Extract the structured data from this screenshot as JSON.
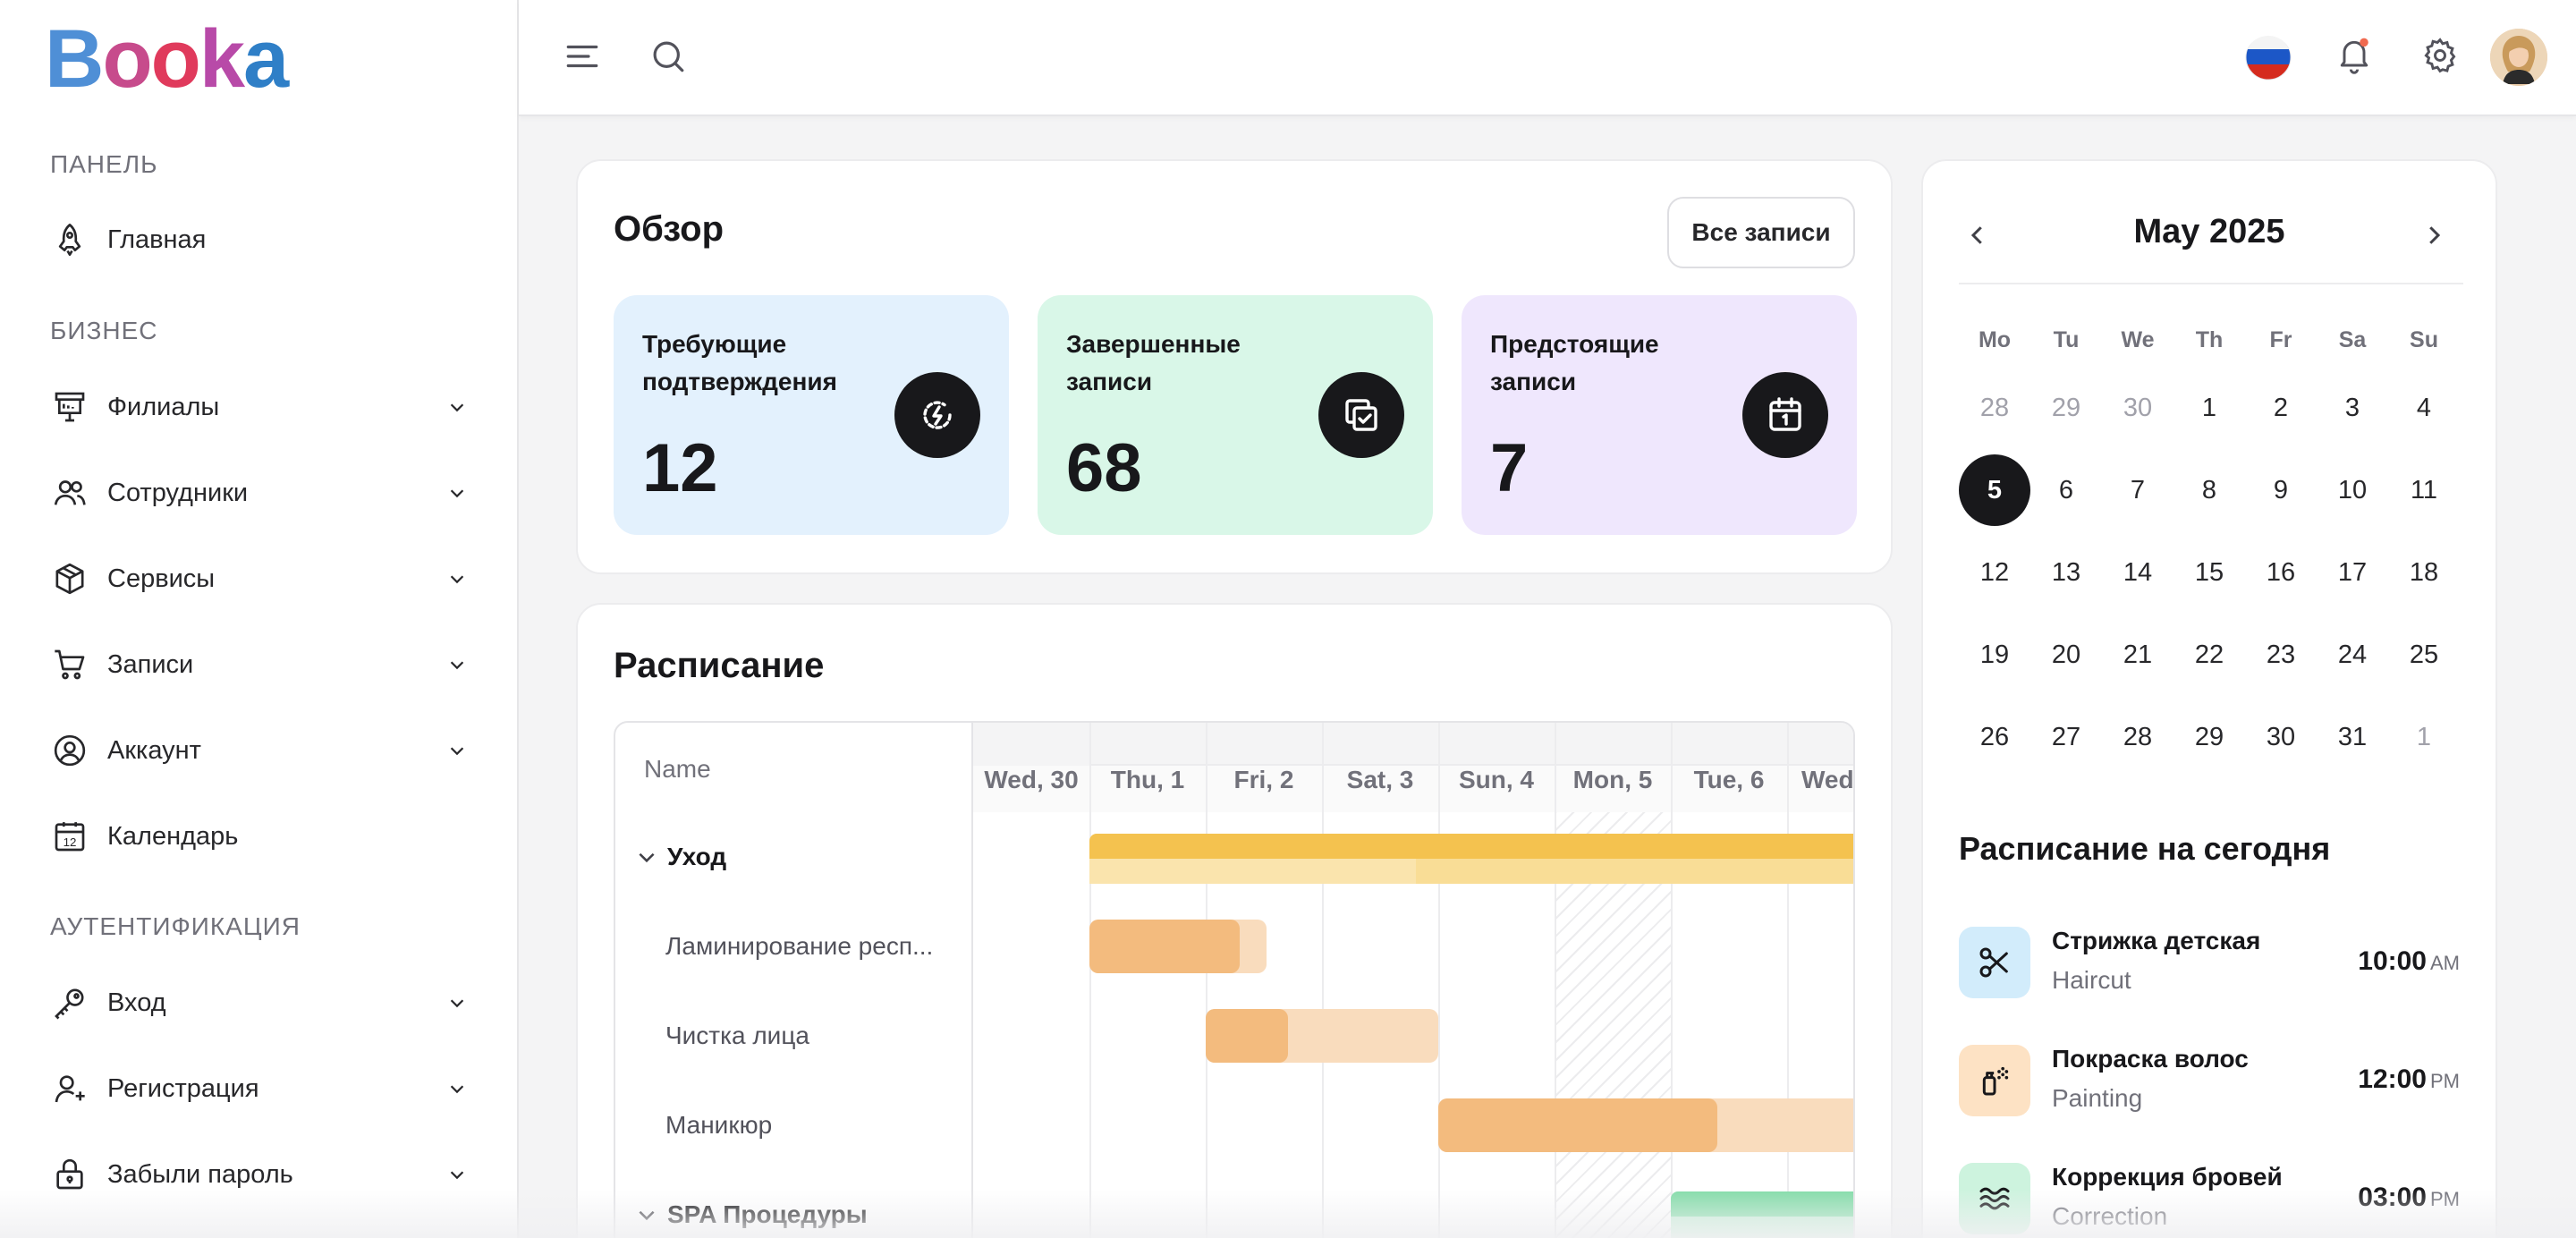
{
  "app": {
    "logo_letters": [
      "B",
      "o",
      "o",
      "k",
      "a"
    ]
  },
  "sidebar": {
    "sections": {
      "panel": "ПАНЕЛЬ",
      "business": "БИЗНЕС",
      "auth": "АУТЕНТИФИКАЦИЯ"
    },
    "items": [
      {
        "label": "Главная",
        "icon": "rocket-icon"
      },
      {
        "label": "Филиалы",
        "icon": "branch-icon"
      },
      {
        "label": "Сотрудники",
        "icon": "users-icon"
      },
      {
        "label": "Сервисы",
        "icon": "box-icon"
      },
      {
        "label": "Записи",
        "icon": "cart-icon"
      },
      {
        "label": "Аккаунт",
        "icon": "user-circle-icon"
      },
      {
        "label": "Календарь",
        "icon": "calendar-icon",
        "icon_text": "12"
      },
      {
        "label": "Вход",
        "icon": "key-icon"
      },
      {
        "label": "Регистрация",
        "icon": "user-plus-icon"
      },
      {
        "label": "Забыли пароль",
        "icon": "lock-icon"
      }
    ]
  },
  "overview": {
    "title": "Обзор",
    "all_button": "Все записи",
    "stats": [
      {
        "label": "Требующие подтверждения",
        "value": "12",
        "color": "#e3f1fd",
        "icon": "lightning-circle-icon"
      },
      {
        "label": "Завершенные записи",
        "value": "68",
        "color": "#d9f7e8",
        "icon": "copy-check-icon"
      },
      {
        "label": "Предстоящие записи",
        "value": "7",
        "color": "#efe7fd",
        "icon": "calendar-one-icon"
      }
    ]
  },
  "schedule": {
    "title": "Расписание",
    "name_header": "Name",
    "days": [
      "Wed, 30",
      "Thu, 1",
      "Fri, 2",
      "Sat, 3",
      "Sun, 4",
      "Mon, 5",
      "Tue, 6",
      "Wed"
    ],
    "rows": [
      {
        "label": "Уход",
        "group": true
      },
      {
        "label": "Ламинирование респ...",
        "group": false
      },
      {
        "label": "Чистка лица",
        "group": false
      },
      {
        "label": "Маникюр",
        "group": false
      },
      {
        "label": "SPA Процедуры",
        "group": true
      }
    ]
  },
  "calendar": {
    "month": "May 2025",
    "weekdays": [
      "Mo",
      "Tu",
      "We",
      "Th",
      "Fr",
      "Sa",
      "Su"
    ],
    "weeks": [
      [
        "28",
        "29",
        "30",
        "1",
        "2",
        "3",
        "4"
      ],
      [
        "5",
        "6",
        "7",
        "8",
        "9",
        "10",
        "11"
      ],
      [
        "12",
        "13",
        "14",
        "15",
        "16",
        "17",
        "18"
      ],
      [
        "19",
        "20",
        "21",
        "22",
        "23",
        "24",
        "25"
      ],
      [
        "26",
        "27",
        "28",
        "29",
        "30",
        "31",
        "1"
      ]
    ],
    "selected": "5"
  },
  "today": {
    "title": "Расписание на сегодня",
    "items": [
      {
        "title": "Стрижка детская",
        "subtitle": "Haircut",
        "time": "10:00",
        "ampm": "AM",
        "color": "#d2ecfb",
        "icon": "scissors-icon"
      },
      {
        "title": "Покраска волос",
        "subtitle": "Painting",
        "time": "12:00",
        "ampm": "PM",
        "color": "#fde2c4",
        "icon": "spray-icon"
      },
      {
        "title": "Коррекция бровей",
        "subtitle": "Correction",
        "time": "03:00",
        "ampm": "PM",
        "color": "#cdf3de",
        "icon": "waves-icon"
      }
    ]
  }
}
